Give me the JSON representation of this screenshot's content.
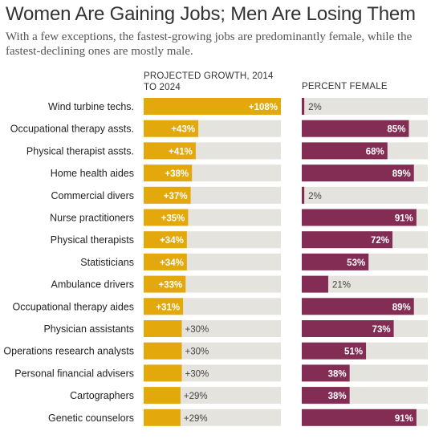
{
  "title": "Women Are Gaining Jobs; Men Are Losing Them",
  "subtitle": "With a few exceptions, the fastest-growing jobs are predominantly female, while the fastest-declining ones are mostly male.",
  "colors": {
    "growth": "#e3a90c",
    "female": "#842d54",
    "track": "#e5e3de"
  },
  "chart_data": [
    {
      "type": "bar",
      "title": "PROJECTED GROWTH, 2014 TO 2024",
      "categories": [
        "Wind turbine techs.",
        "Occupational therapy assts.",
        "Physical therapist assts.",
        "Home health aides",
        "Commercial divers",
        "Nurse practitioners",
        "Physical therapists",
        "Statisticians",
        "Ambulance drivers",
        "Occupational therapy aides",
        "Physician assistants",
        "Operations research analysts",
        "Personal financial advisers",
        "Cartographers",
        "Genetic counselors"
      ],
      "values": [
        108,
        43,
        41,
        38,
        37,
        35,
        34,
        34,
        33,
        31,
        30,
        30,
        30,
        29,
        29
      ],
      "labels": [
        "+108%",
        "+43%",
        "+41%",
        "+38%",
        "+37%",
        "+35%",
        "+34%",
        "+34%",
        "+33%",
        "+31%",
        "+30%",
        "+30%",
        "+30%",
        "+29%",
        "+29%"
      ],
      "xlim": [
        0,
        108
      ]
    },
    {
      "type": "bar",
      "title": "PERCENT FEMALE",
      "categories": [
        "Wind turbine techs.",
        "Occupational therapy assts.",
        "Physical therapist assts.",
        "Home health aides",
        "Commercial divers",
        "Nurse practitioners",
        "Physical therapists",
        "Statisticians",
        "Ambulance drivers",
        "Occupational therapy aides",
        "Physician assistants",
        "Operations research analysts",
        "Personal financial advisers",
        "Cartographers",
        "Genetic counselors"
      ],
      "values": [
        2,
        85,
        68,
        89,
        2,
        91,
        72,
        53,
        21,
        89,
        73,
        51,
        38,
        38,
        91
      ],
      "labels": [
        "2%",
        "85%",
        "68%",
        "89%",
        "2%",
        "91%",
        "72%",
        "53%",
        "21%",
        "89%",
        "73%",
        "51%",
        "38%",
        "38%",
        "91%"
      ],
      "xlim": [
        0,
        100
      ]
    }
  ]
}
